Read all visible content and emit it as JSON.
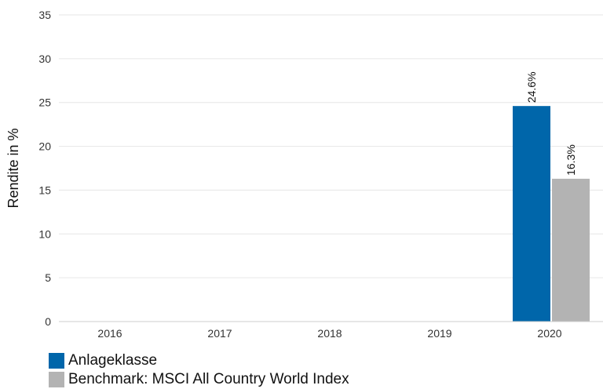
{
  "chart_data": {
    "type": "bar",
    "categories": [
      "2016",
      "2017",
      "2018",
      "2019",
      "2020"
    ],
    "series": [
      {
        "name": "Anlageklasse",
        "color": "#0066aa",
        "values": [
          null,
          null,
          null,
          null,
          24.6
        ],
        "labels": [
          null,
          null,
          null,
          null,
          "24.6%"
        ]
      },
      {
        "name": "Benchmark: MSCI All Country World Index",
        "color": "#b3b3b3",
        "values": [
          null,
          null,
          null,
          null,
          16.3
        ],
        "labels": [
          null,
          null,
          null,
          null,
          "16.3%"
        ]
      }
    ],
    "ylabel": "Rendite in %",
    "ylim": [
      0,
      35
    ],
    "yticks": [
      0,
      5,
      10,
      15,
      20,
      25,
      30,
      35
    ],
    "grid": true,
    "legend_position": "bottom-left"
  }
}
